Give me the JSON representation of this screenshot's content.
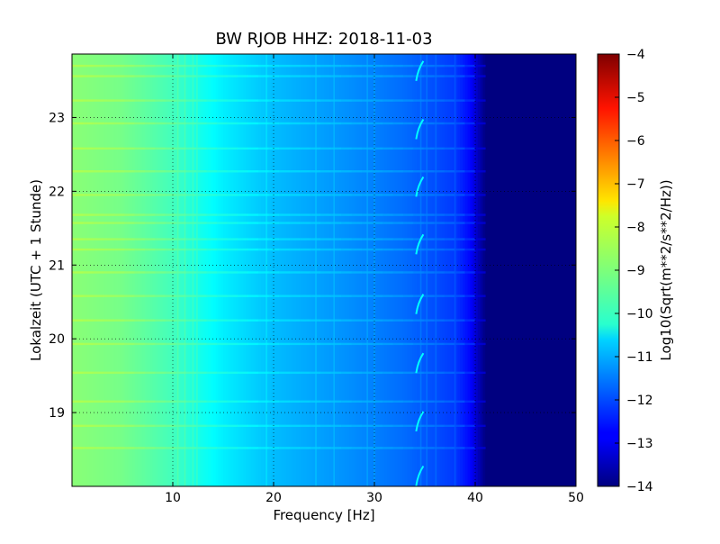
{
  "chart_data": {
    "type": "heatmap",
    "title": "BW RJOB HHZ: 2018-11-03",
    "xlabel": "Frequency [Hz]",
    "ylabel": "Lokalzeit (UTC + 1 Stunde)",
    "xlim": [
      0,
      50
    ],
    "ylim": [
      23.86,
      18.0
    ],
    "y_inverted": true,
    "xticks": [
      10,
      20,
      30,
      40,
      50
    ],
    "yticks": [
      19,
      20,
      21,
      22,
      23
    ],
    "grid": true,
    "colormap": "jet",
    "colorbar": {
      "label": "Log10(Sqrt(m**2/s**2/Hz))",
      "range": [
        -14,
        -4
      ],
      "ticks": [
        -4,
        -5,
        -6,
        -7,
        -8,
        -9,
        -10,
        -11,
        -12,
        -13,
        -14
      ]
    },
    "spectral_profile": {
      "frequencies_hz": [
        0,
        5,
        10,
        13,
        15,
        18,
        20,
        25,
        30,
        33,
        35,
        38,
        39.5,
        41,
        50
      ],
      "log10_amplitude": [
        -8.9,
        -9.1,
        -9.6,
        -10.1,
        -10.4,
        -10.7,
        -10.9,
        -11.2,
        -11.5,
        -11.7,
        -11.9,
        -12.2,
        -12.7,
        -14.0,
        -14.0
      ]
    },
    "spectral_lines_hz": [
      10.5,
      11.2,
      12.0,
      12.4,
      19.3,
      24.2,
      26.0,
      29.3,
      30.0,
      34.6,
      35.2,
      36.1,
      38.0
    ],
    "horizontal_events_hour": [
      18.52,
      18.82,
      19.15,
      19.54,
      19.93,
      20.25,
      20.58,
      20.9,
      21.21,
      21.35,
      21.57,
      21.68,
      21.95,
      22.27,
      22.58,
      22.92,
      23.23,
      23.56,
      23.7
    ],
    "chirp_events_hour": [
      18.14,
      18.88,
      19.67,
      20.47,
      21.28,
      22.06,
      22.84,
      23.63
    ],
    "chirp_frequency_hz": 34.5
  },
  "colors": {
    "jet_dark_blue": "#00007f",
    "jet_dark_red": "#7f0000",
    "frame": "#000000",
    "grid": "#000000"
  }
}
